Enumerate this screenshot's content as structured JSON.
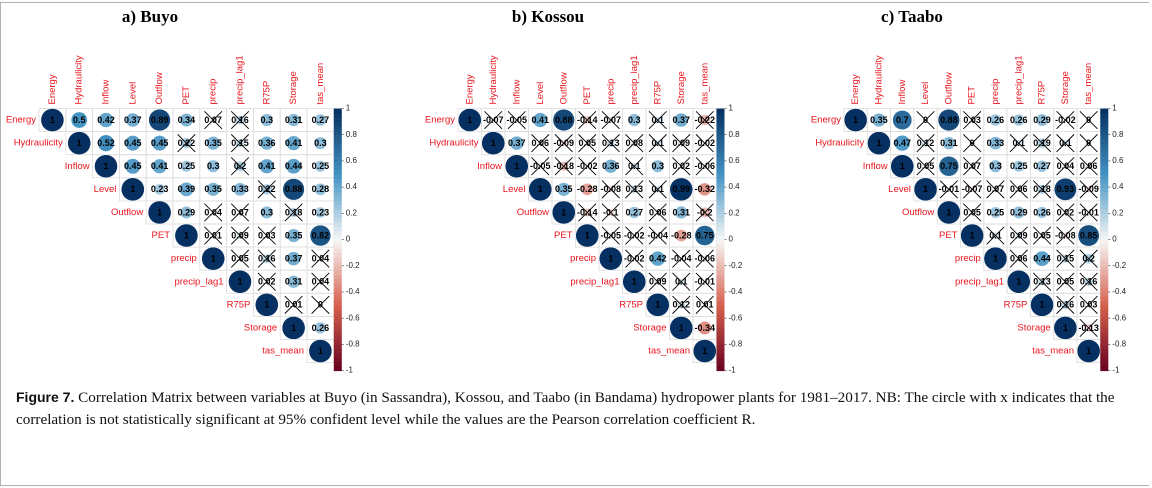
{
  "chart_data": [
    {
      "type": "corrplot",
      "title": "a) Buyo",
      "variables": [
        "Energy",
        "Hydraulicity",
        "Inflow",
        "Level",
        "Outflow",
        "PET",
        "precip",
        "precip_lag1",
        "R75P",
        "Storage",
        "tas_mean"
      ],
      "matrix": [
        [
          1,
          0.5,
          0.42,
          0.37,
          0.89,
          0.34,
          0.07,
          0.16,
          0.3,
          0.31,
          0.27
        ],
        [
          1,
          0.52,
          0.45,
          0.45,
          0.22,
          0.35,
          0.15,
          0.36,
          0.41,
          0.3
        ],
        [
          1,
          0.45,
          0.41,
          0.25,
          0.3,
          0.2,
          0.41,
          0.44,
          0.25
        ],
        [
          1,
          0.23,
          0.39,
          0.35,
          0.33,
          0.22,
          0.88,
          0.28
        ],
        [
          1,
          0.29,
          0.04,
          0.07,
          0.3,
          0.18,
          0.23
        ],
        [
          1,
          0.01,
          0.09,
          0.03,
          0.35,
          0.82
        ],
        [
          1,
          0.05,
          0.16,
          0.37,
          0.04
        ],
        [
          1,
          0.02,
          0.31,
          0.04
        ],
        [
          1,
          0.01,
          0
        ],
        [
          1,
          0.26
        ],
        [
          1
        ]
      ],
      "insignificant": [
        [
          false,
          false,
          false,
          false,
          false,
          false,
          true,
          true,
          false,
          false,
          false
        ],
        [
          false,
          false,
          false,
          false,
          true,
          false,
          true,
          false,
          false,
          false
        ],
        [
          false,
          false,
          false,
          false,
          false,
          true,
          false,
          false,
          false
        ],
        [
          false,
          false,
          false,
          false,
          false,
          true,
          false,
          false
        ],
        [
          false,
          false,
          true,
          true,
          false,
          true,
          false
        ],
        [
          false,
          true,
          true,
          true,
          false,
          false
        ],
        [
          false,
          true,
          true,
          false,
          true
        ],
        [
          false,
          true,
          false,
          true
        ],
        [
          false,
          true,
          true
        ],
        [
          false,
          false
        ],
        [
          false
        ]
      ],
      "clim": [
        -1,
        1
      ],
      "colorbar_ticks": [
        1,
        0.8,
        0.6,
        0.4,
        0.2,
        0,
        -0.2,
        -0.4,
        -0.6,
        -0.8,
        -1
      ],
      "colors": [
        "#67001f",
        "#d6604d",
        "#f7f7f7",
        "#4393c3",
        "#053061"
      ],
      "label_color": "#e8141c"
    },
    {
      "type": "corrplot",
      "title": "b) Kossou",
      "variables": [
        "Energy",
        "Hydraulicity",
        "Inflow",
        "Level",
        "Outflow",
        "PET",
        "precip",
        "precip_lag1",
        "R75P",
        "Storage",
        "tas_mean"
      ],
      "matrix": [
        [
          1,
          -0.07,
          -0.05,
          0.41,
          0.88,
          -0.14,
          -0.07,
          0.3,
          0.1,
          0.37,
          -0.22
        ],
        [
          1,
          0.37,
          0.06,
          -0.09,
          0.05,
          0.13,
          0.08,
          0.1,
          0.09,
          -0.02
        ],
        [
          1,
          -0.05,
          -0.18,
          -0.02,
          0.36,
          0.1,
          0.3,
          0.02,
          -0.06
        ],
        [
          1,
          0.35,
          -0.28,
          -0.08,
          0.13,
          0.1,
          0.99,
          -0.32
        ],
        [
          1,
          -0.14,
          -0.1,
          0.27,
          0.06,
          0.31,
          -0.2
        ],
        [
          1,
          -0.05,
          -0.02,
          -0.04,
          -0.28,
          0.75
        ],
        [
          1,
          -0.02,
          0.42,
          -0.04,
          -0.06
        ],
        [
          1,
          0.09,
          0.1,
          -0.01
        ],
        [
          1,
          0.12,
          0.01
        ],
        [
          1,
          -0.34
        ],
        [
          1
        ]
      ],
      "insignificant": [
        [
          false,
          true,
          true,
          false,
          false,
          true,
          true,
          false,
          true,
          false,
          true
        ],
        [
          false,
          false,
          true,
          true,
          true,
          true,
          true,
          true,
          true,
          true
        ],
        [
          false,
          true,
          true,
          true,
          false,
          true,
          false,
          true,
          true
        ],
        [
          false,
          false,
          false,
          true,
          true,
          true,
          false,
          false
        ],
        [
          false,
          true,
          true,
          false,
          true,
          false,
          true
        ],
        [
          false,
          true,
          true,
          true,
          false,
          false
        ],
        [
          false,
          true,
          false,
          true,
          true
        ],
        [
          false,
          true,
          true,
          true
        ],
        [
          false,
          true,
          true
        ],
        [
          false,
          false
        ],
        [
          false
        ]
      ],
      "clim": [
        -1,
        1
      ],
      "colorbar_ticks": [
        1,
        0.8,
        0.6,
        0.4,
        0.2,
        0,
        -0.2,
        -0.4,
        -0.6,
        -0.8,
        -1
      ],
      "colors": [
        "#67001f",
        "#d6604d",
        "#f7f7f7",
        "#4393c3",
        "#053061"
      ],
      "label_color": "#e8141c"
    },
    {
      "type": "corrplot",
      "title": "c) Taabo",
      "variables": [
        "Energy",
        "Hydraulicity",
        "Inflow",
        "Level",
        "Outflow",
        "PET",
        "precip",
        "precip_lag1",
        "R75P",
        "Storage",
        "tas_mean"
      ],
      "matrix": [
        [
          1,
          0.35,
          0.7,
          0,
          0.88,
          0.03,
          0.26,
          0.26,
          0.29,
          -0.02,
          0
        ],
        [
          1,
          0.47,
          0.12,
          0.31,
          0,
          0.33,
          0.1,
          0.19,
          0.1,
          0
        ],
        [
          1,
          0.05,
          0.75,
          0.07,
          0.3,
          0.25,
          0.27,
          0.04,
          0.06
        ],
        [
          1,
          -0.01,
          -0.07,
          0.07,
          0.06,
          0.18,
          0.93,
          -0.09
        ],
        [
          1,
          0.05,
          0.25,
          0.29,
          0.26,
          0.02,
          -0.01
        ],
        [
          1,
          0.1,
          0.09,
          0.05,
          -0.08,
          0.85
        ],
        [
          1,
          0.06,
          0.44,
          0.15,
          0.2
        ],
        [
          1,
          0.13,
          0.05,
          0.16
        ],
        [
          1,
          0.16,
          0.03
        ],
        [
          1,
          -0.13
        ],
        [
          1
        ]
      ],
      "insignificant": [
        [
          false,
          false,
          false,
          true,
          false,
          true,
          false,
          false,
          false,
          true,
          true
        ],
        [
          false,
          false,
          true,
          false,
          true,
          false,
          true,
          true,
          true,
          true
        ],
        [
          false,
          true,
          false,
          true,
          false,
          false,
          false,
          true,
          true
        ],
        [
          false,
          true,
          true,
          true,
          true,
          true,
          false,
          true
        ],
        [
          false,
          true,
          false,
          false,
          false,
          true,
          true
        ],
        [
          false,
          true,
          true,
          true,
          true,
          false
        ],
        [
          false,
          true,
          false,
          true,
          true
        ],
        [
          false,
          true,
          true,
          true
        ],
        [
          false,
          true,
          true
        ],
        [
          false,
          true
        ],
        [
          false
        ]
      ],
      "clim": [
        -1,
        1
      ],
      "colorbar_ticks": [
        1,
        0.8,
        0.6,
        0.4,
        0.2,
        0,
        -0.2,
        -0.4,
        -0.6,
        -0.8,
        -1
      ],
      "colors": [
        "#67001f",
        "#d6604d",
        "#f7f7f7",
        "#4393c3",
        "#053061"
      ],
      "label_color": "#e8141c"
    }
  ],
  "caption": {
    "label": "Figure 7.",
    "text": "Correlation Matrix between variables at Buyo (in Sassandra), Kossou, and Taabo (in Bandama) hydropower plants for 1981–2017. NB: The circle with x indicates that the correlation is not statistically significant at 95% confident level while the values are the Pearson correlation coefficient R."
  }
}
